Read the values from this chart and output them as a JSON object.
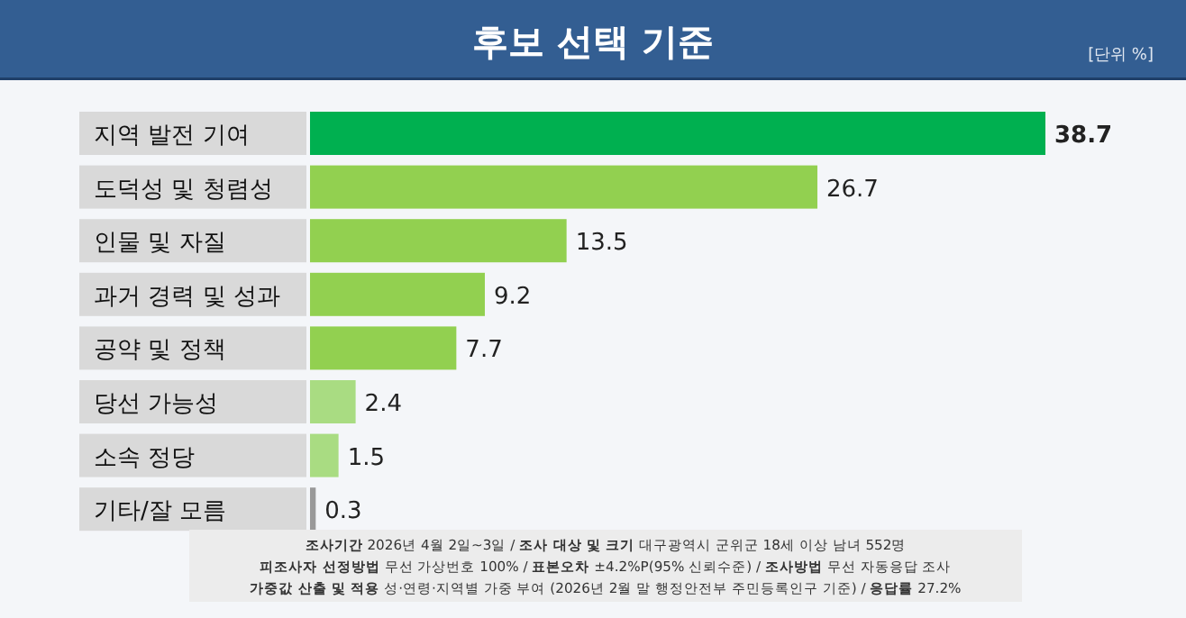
{
  "chart_data": {
    "type": "bar",
    "orientation": "horizontal",
    "title": "후보 선택 기준",
    "subtitle": "[단위 %]",
    "categories": [
      "지역 발전 기여",
      "도덕성 및 청렴성",
      "인물 및 자질",
      "과거 경력 및 성과",
      "공약 및 정책",
      "당선 가능성",
      "소속 정당",
      "기타/잘 모름"
    ],
    "values": [
      38.7,
      26.7,
      13.5,
      9.2,
      7.7,
      2.4,
      1.5,
      0.3
    ],
    "colors": [
      "#00b050",
      "#92d050",
      "#92d050",
      "#92d050",
      "#92d050",
      "#a9dc82",
      "#a9dc82",
      "#999999"
    ],
    "data_labels": true,
    "annotations": [
      "**조사기간** 2026년 4월 2일~3일 / **조사 대상 및 크기** 대구광역시 군위군 18세 이상 남녀 552명",
      "**피조사자 선정방법** 무선 가상번호 100% / **표본오차** ±4.2%P(95% 신뢰수준) / **조사방법** 무선 자동응답 조사",
      "**가중값 산출 및 적용** 성·연령·지역별 가중 부여 (2026년 2월 말 행정안전부 주민등록인구 기준) / **응답률** 27.2%"
    ]
  }
}
